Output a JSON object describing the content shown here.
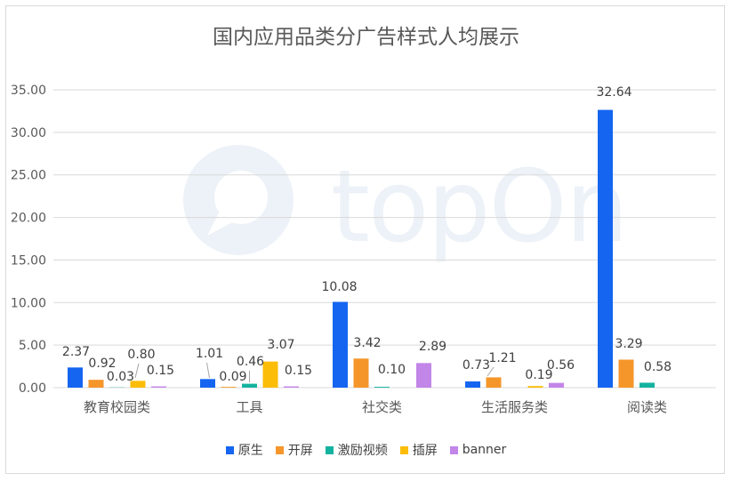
{
  "chart_data": {
    "type": "bar",
    "title": "国内应用品类分广告样式人均展示",
    "categories": [
      "教育校园类",
      "工具",
      "社交类",
      "生活服务类",
      "阅读类"
    ],
    "series": [
      {
        "name": "原生",
        "color": "#1565f0",
        "values": [
          2.37,
          1.01,
          10.08,
          0.73,
          32.64
        ],
        "labels": [
          "2.37",
          "1.01",
          "10.08",
          "0.73",
          "32.64"
        ]
      },
      {
        "name": "开屏",
        "color": "#f5962a",
        "values": [
          0.92,
          0.09,
          3.42,
          1.21,
          3.29
        ],
        "labels": [
          "0.92",
          "0.09",
          "3.42",
          "1.21",
          "3.29"
        ]
      },
      {
        "name": "激励视频",
        "color": "#14b3a0",
        "values": [
          0.03,
          0.46,
          0.1,
          0.0,
          0.58
        ],
        "labels": [
          "0.03",
          "0.46",
          "0.10",
          "",
          "0.58"
        ]
      },
      {
        "name": "插屏",
        "color": "#fbbd08",
        "values": [
          0.8,
          3.07,
          0.0,
          0.19,
          0.0
        ],
        "labels": [
          "0.80",
          "3.07",
          "",
          "0.19",
          ""
        ]
      },
      {
        "name": "banner",
        "color": "#c285e8",
        "values": [
          0.15,
          0.15,
          2.89,
          0.56,
          0.0
        ],
        "labels": [
          "0.15",
          "0.15",
          "2.89",
          "0.56",
          ""
        ]
      }
    ],
    "yticks": [
      "0.00",
      "5.00",
      "10.00",
      "15.00",
      "20.00",
      "25.00",
      "30.00",
      "35.00"
    ],
    "ylim": [
      0,
      35
    ],
    "grid": true,
    "legend_position": "bottom",
    "xlabel": "",
    "ylabel": ""
  },
  "watermark": {
    "text": "topOn"
  }
}
